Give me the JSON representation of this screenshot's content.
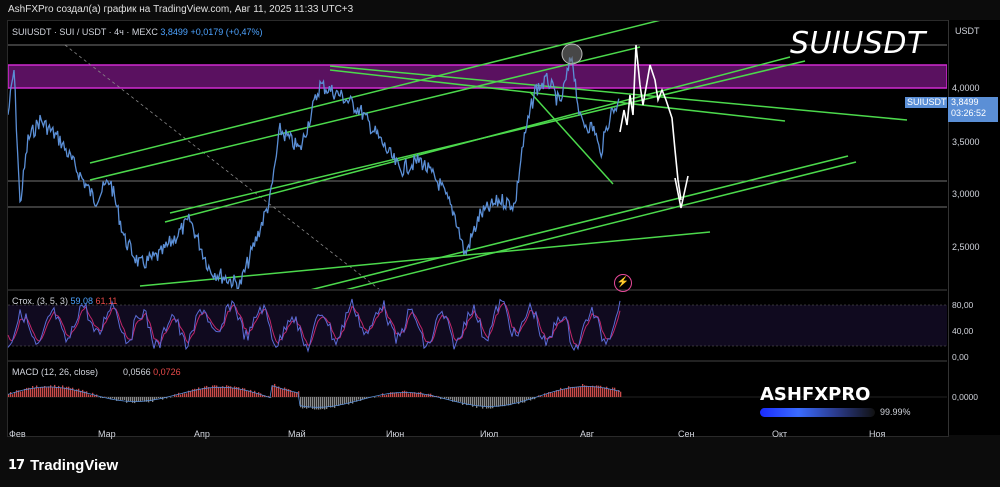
{
  "caption": "AshFXPro создал(а) график на TradingView.com, Авг 11, 2025 11:33 UTC+3",
  "symbol_header": {
    "name": "SUIUSDT · SUI / USDT · 4ч · MEXC",
    "price": "3,8499",
    "change": "+0,0179 (+0,47%)"
  },
  "currency": "USDT",
  "title_overlay": "SUIUSDT",
  "price_tag": {
    "symbol": "SUIUSDT",
    "price": "3,8499",
    "countdown": "03:26:52"
  },
  "price_ticks": [
    "4,0000",
    "3,5000",
    "3,0000",
    "2,5000"
  ],
  "stoch": {
    "label": "Стох. (3, 5, 3)",
    "k": "59,08",
    "d": "61,11",
    "ticks": [
      "80,00",
      "40,00",
      "0,00"
    ]
  },
  "macd": {
    "label": "MACD (12, 26, close)",
    "v1": "0,0566",
    "v2": "0,0726",
    "tick": "0,0000"
  },
  "months": [
    "Фев",
    "Мар",
    "Апр",
    "Май",
    "Июн",
    "Июл",
    "Авг",
    "Сен",
    "Окт",
    "Ноя"
  ],
  "watermark": {
    "brand": "ASHFXPRO",
    "percent": "99.99%"
  },
  "footer": {
    "logo": "17",
    "brand": "TradingView"
  },
  "colors": {
    "price_line": "#5b8fd6",
    "trendlines": "#4cd94c",
    "zone": "#c026c0",
    "macd_pos": "#c94a4a",
    "stoch_k": "#5b6bd6",
    "stoch_d": "#c0266a"
  }
}
